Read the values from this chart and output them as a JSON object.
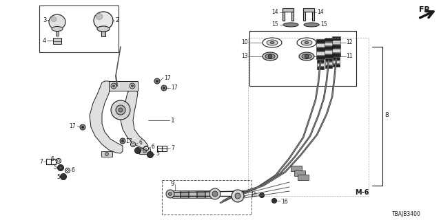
{
  "bg_color": "#ffffff",
  "line_color": "#1a1a1a",
  "fig_width": 6.4,
  "fig_height": 3.2,
  "dpi": 100,
  "diagram_id": "TBAJB3400"
}
